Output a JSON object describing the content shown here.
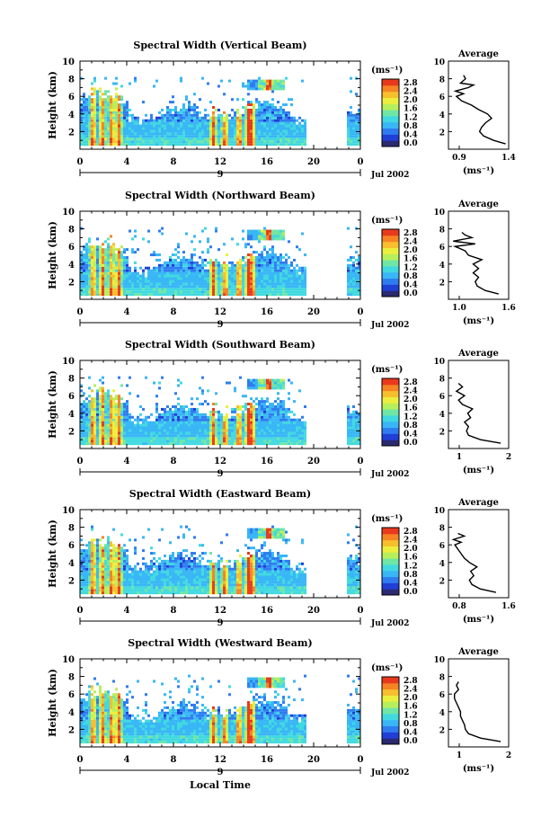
{
  "chart_data": [
    {
      "type": "heatmap",
      "title": "Spectral Width (Vertical Beam)",
      "ylabel": "Height (km)",
      "yticks": [
        "2",
        "4",
        "6",
        "8",
        "10"
      ],
      "xticks": [
        "0",
        "4",
        "8",
        "12",
        "16",
        "20",
        "0"
      ],
      "date_marker": "9",
      "date_label": "Jul 2002",
      "colorbar_unit": "(ms⁻¹)",
      "colorbar_ticks": [
        "0.0",
        "0.4",
        "0.8",
        "1.2",
        "1.6",
        "2.0",
        "2.4",
        "2.8"
      ],
      "profile": {
        "title": "Average",
        "xlabel": "(ms⁻¹)",
        "xticks": [
          "0.9",
          "1.4"
        ],
        "xlim": [
          0.85,
          1.45
        ],
        "yticks": [
          "2",
          "4",
          "6",
          "8",
          "10"
        ],
        "ylim": [
          0,
          10
        ],
        "points": [
          [
            1.42,
            0.6
          ],
          [
            1.3,
            1.0
          ],
          [
            1.2,
            1.5
          ],
          [
            1.16,
            2.0
          ],
          [
            1.18,
            2.5
          ],
          [
            1.22,
            3.0
          ],
          [
            1.28,
            3.5
          ],
          [
            1.24,
            4.0
          ],
          [
            1.15,
            4.5
          ],
          [
            1.08,
            5.0
          ],
          [
            0.98,
            5.5
          ],
          [
            0.93,
            6.0
          ],
          [
            1.0,
            6.3
          ],
          [
            0.92,
            6.6
          ],
          [
            1.05,
            7.0
          ],
          [
            1.1,
            7.3
          ],
          [
            0.97,
            7.5
          ],
          [
            1.02,
            8.0
          ],
          [
            1.0,
            8.4
          ]
        ]
      }
    },
    {
      "type": "heatmap",
      "title": "Spectral Width (Northward Beam)",
      "ylabel": "Height (km)",
      "yticks": [
        "2",
        "4",
        "6",
        "8",
        "10"
      ],
      "xticks": [
        "0",
        "4",
        "8",
        "12",
        "16",
        "20",
        "0"
      ],
      "date_marker": "9",
      "date_label": "Jul 2002",
      "colorbar_unit": "(ms⁻¹)",
      "colorbar_ticks": [
        "0.0",
        "0.4",
        "0.8",
        "1.2",
        "1.6",
        "2.0",
        "2.4",
        "2.8"
      ],
      "profile": {
        "title": "Average",
        "xlabel": "(ms⁻¹)",
        "xticks": [
          "1.0",
          "1.6"
        ],
        "xlim": [
          0.85,
          1.75
        ],
        "yticks": [
          "2",
          "4",
          "6",
          "8",
          "10"
        ],
        "ylim": [
          0,
          10
        ],
        "points": [
          [
            1.6,
            0.6
          ],
          [
            1.4,
            1.0
          ],
          [
            1.28,
            1.5
          ],
          [
            1.25,
            2.0
          ],
          [
            1.3,
            2.5
          ],
          [
            1.22,
            3.0
          ],
          [
            1.3,
            3.5
          ],
          [
            1.22,
            4.0
          ],
          [
            1.35,
            4.5
          ],
          [
            1.15,
            5.0
          ],
          [
            1.1,
            5.5
          ],
          [
            0.95,
            6.0
          ],
          [
            1.25,
            6.3
          ],
          [
            0.92,
            6.6
          ],
          [
            1.2,
            7.0
          ],
          [
            1.1,
            7.3
          ],
          [
            1.05,
            7.6
          ]
        ]
      }
    },
    {
      "type": "heatmap",
      "title": "Spectral Width (Southward Beam)",
      "ylabel": "Height (km)",
      "yticks": [
        "2",
        "4",
        "6",
        "8",
        "10"
      ],
      "xticks": [
        "0",
        "4",
        "8",
        "12",
        "16",
        "20",
        "0"
      ],
      "date_marker": "9",
      "date_label": "Jul 2002",
      "colorbar_unit": "(ms⁻¹)",
      "colorbar_ticks": [
        "0.0",
        "0.4",
        "0.8",
        "1.2",
        "1.6",
        "2.0",
        "2.4",
        "2.8"
      ],
      "profile": {
        "title": "Average",
        "xlabel": "(ms⁻¹)",
        "xticks": [
          "1",
          "2"
        ],
        "xlim": [
          0.8,
          2.3
        ],
        "yticks": [
          "2",
          "4",
          "6",
          "8",
          "10"
        ],
        "ylim": [
          0,
          10
        ],
        "points": [
          [
            2.1,
            0.6
          ],
          [
            1.6,
            1.0
          ],
          [
            1.3,
            1.5
          ],
          [
            1.25,
            2.0
          ],
          [
            1.3,
            2.5
          ],
          [
            1.2,
            3.0
          ],
          [
            1.35,
            3.5
          ],
          [
            1.28,
            4.0
          ],
          [
            1.4,
            4.5
          ],
          [
            1.15,
            5.0
          ],
          [
            1.05,
            5.5
          ],
          [
            1.2,
            6.0
          ],
          [
            1.0,
            6.5
          ],
          [
            1.15,
            7.0
          ],
          [
            1.05,
            7.4
          ]
        ]
      }
    },
    {
      "type": "heatmap",
      "title": "Spectral Width (Eastward Beam)",
      "ylabel": "Height (km)",
      "yticks": [
        "2",
        "4",
        "6",
        "8",
        "10"
      ],
      "xticks": [
        "0",
        "4",
        "8",
        "12",
        "16",
        "20",
        "0"
      ],
      "date_marker": "9",
      "date_label": "Jul 2002",
      "colorbar_unit": "(ms⁻¹)",
      "colorbar_ticks": [
        "0.0",
        "0.4",
        "0.8",
        "1.2",
        "1.6",
        "2.0",
        "2.4",
        "2.8"
      ],
      "profile": {
        "title": "Average",
        "xlabel": "(ms⁻¹)",
        "xticks": [
          "0.8",
          "1.6"
        ],
        "xlim": [
          0.75,
          1.7
        ],
        "yticks": [
          "2",
          "4",
          "6",
          "8",
          "10"
        ],
        "ylim": [
          0,
          10
        ],
        "points": [
          [
            1.5,
            0.6
          ],
          [
            1.25,
            1.0
          ],
          [
            1.12,
            1.5
          ],
          [
            1.08,
            2.0
          ],
          [
            1.15,
            2.5
          ],
          [
            1.1,
            3.0
          ],
          [
            1.2,
            3.5
          ],
          [
            1.08,
            4.0
          ],
          [
            1.0,
            4.5
          ],
          [
            0.95,
            5.0
          ],
          [
            0.9,
            5.5
          ],
          [
            0.85,
            6.0
          ],
          [
            0.95,
            6.3
          ],
          [
            0.83,
            6.6
          ],
          [
            1.0,
            7.0
          ],
          [
            0.9,
            7.3
          ]
        ]
      }
    },
    {
      "type": "heatmap",
      "title": "Spectral Width (Westward Beam)",
      "ylabel": "Height (km)",
      "yticks": [
        "2",
        "4",
        "6",
        "8",
        "10"
      ],
      "xticks": [
        "0",
        "4",
        "8",
        "12",
        "16",
        "20",
        "0"
      ],
      "date_marker": "9",
      "date_label": "Jul 2002",
      "xlabel": "Local Time",
      "colorbar_unit": "(ms⁻¹)",
      "colorbar_ticks": [
        "0.0",
        "0.4",
        "0.8",
        "1.2",
        "1.6",
        "2.0",
        "2.4",
        "2.8"
      ],
      "profile": {
        "title": "Average",
        "xlabel": "(ms⁻¹)",
        "xticks": [
          "1",
          "2"
        ],
        "xlim": [
          0.7,
          2.2
        ],
        "yticks": [
          "2",
          "4",
          "6",
          "8",
          "10"
        ],
        "ylim": [
          0,
          10
        ],
        "points": [
          [
            2.0,
            0.6
          ],
          [
            1.5,
            1.0
          ],
          [
            1.2,
            1.5
          ],
          [
            1.12,
            2.0
          ],
          [
            1.1,
            2.5
          ],
          [
            1.05,
            3.0
          ],
          [
            1.0,
            3.5
          ],
          [
            1.0,
            4.0
          ],
          [
            0.95,
            4.5
          ],
          [
            0.9,
            5.0
          ],
          [
            0.85,
            5.5
          ],
          [
            0.85,
            6.0
          ],
          [
            0.95,
            6.5
          ],
          [
            0.9,
            7.0
          ],
          [
            0.95,
            7.4
          ]
        ]
      }
    }
  ],
  "colormap": [
    "#2a2a70",
    "#1f3fd6",
    "#2f7cf0",
    "#39b6f6",
    "#41d9e0",
    "#6fe6a6",
    "#b6ef5c",
    "#ecee3e",
    "#f7be2e",
    "#f68324",
    "#e8391e"
  ]
}
